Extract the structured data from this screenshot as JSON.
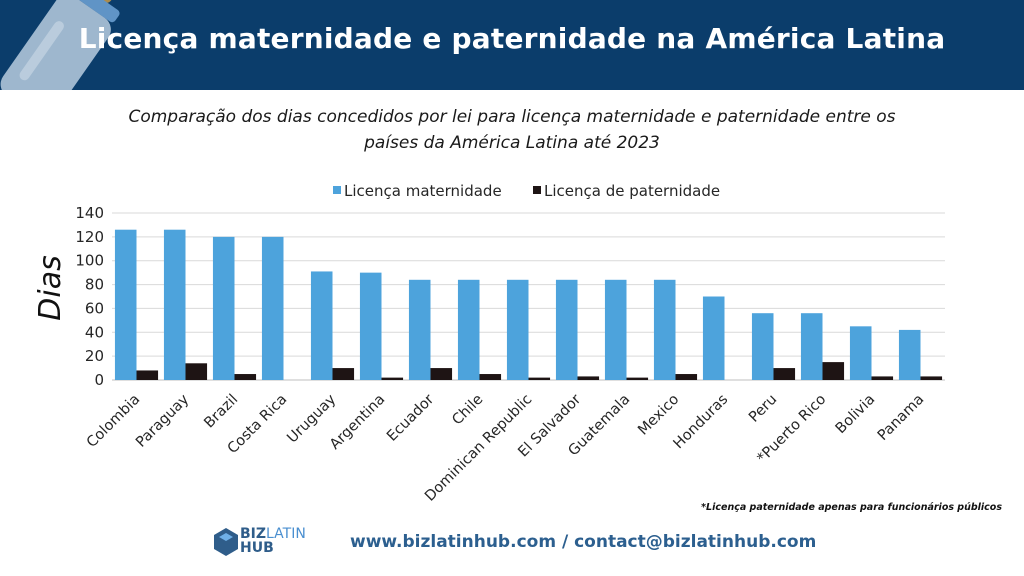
{
  "header": {
    "title": "Licença maternidade e paternidade na América Latina"
  },
  "subtitle": "Comparação dos dias concedidos por lei para licença maternidade e paternidade entre os países da América Latina até 2023",
  "footnote": "*Licença paternidade apenas para funcionários públicos",
  "logo": {
    "line1_bold": "BIZ",
    "line1_thin": "LATIN",
    "line2": "HUB"
  },
  "contact": "www.bizlatinhub.com / contact@bizlatinhub.com",
  "colors": {
    "header_bg": "#0b3d6b",
    "maternity": "#4da3dc",
    "paternity": "#1e1414"
  },
  "chart_data": {
    "type": "bar",
    "ylabel": "Dias",
    "xlabel": "",
    "ylim": [
      0,
      140
    ],
    "yticks": [
      0,
      20,
      40,
      60,
      80,
      100,
      120,
      140
    ],
    "grid": true,
    "legend_position": "top",
    "categories": [
      "Colombia",
      "Paraguay",
      "Brazil",
      "Costa Rica",
      "Uruguay",
      "Argentina",
      "Ecuador",
      "Chile",
      "Dominican Republic",
      "El Salvador",
      "Guatemala",
      "Mexico",
      "Honduras",
      "Peru",
      "*Puerto Rico",
      "Bolivia",
      "Panama"
    ],
    "series": [
      {
        "name": "Licença maternidade",
        "values": [
          126,
          126,
          120,
          120,
          91,
          90,
          84,
          84,
          84,
          84,
          84,
          84,
          70,
          56,
          56,
          45,
          42
        ]
      },
      {
        "name": "Licença de paternidade",
        "values": [
          8,
          14,
          5,
          0,
          10,
          2,
          10,
          5,
          2,
          3,
          2,
          5,
          0,
          10,
          15,
          3,
          3
        ]
      }
    ]
  }
}
